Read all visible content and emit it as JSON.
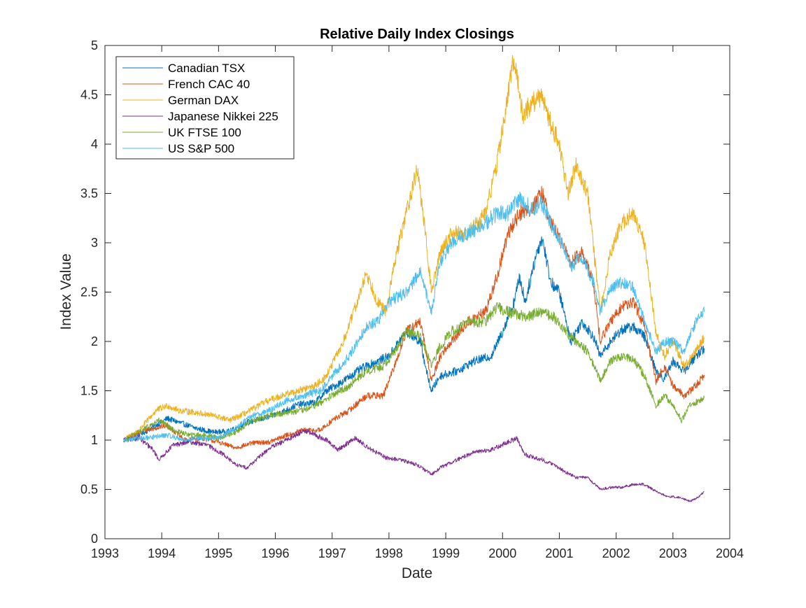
{
  "chart_data": {
    "type": "line",
    "title": "Relative Daily Index Closings",
    "xlabel": "Date",
    "ylabel": "Index Value",
    "xlim": [
      1993,
      2004
    ],
    "ylim": [
      0,
      5
    ],
    "x_ticks": [
      "1993",
      "1994",
      "1995",
      "1996",
      "1997",
      "1998",
      "1999",
      "2000",
      "2001",
      "2002",
      "2003",
      "2004"
    ],
    "y_ticks": [
      "0",
      "0.5",
      "1",
      "1.5",
      "2",
      "2.5",
      "3",
      "3.5",
      "4",
      "4.5",
      "5"
    ],
    "grid": false,
    "legend_position": "top-left",
    "series": [
      {
        "name": "Canadian TSX",
        "color": "#0072BD",
        "points": [
          [
            1993.33,
            1.0
          ],
          [
            1993.7,
            1.08
          ],
          [
            1994.1,
            1.22
          ],
          [
            1994.3,
            1.18
          ],
          [
            1994.6,
            1.12
          ],
          [
            1994.9,
            1.08
          ],
          [
            1995.2,
            1.09
          ],
          [
            1995.5,
            1.18
          ],
          [
            1995.8,
            1.22
          ],
          [
            1996.1,
            1.28
          ],
          [
            1996.4,
            1.36
          ],
          [
            1996.7,
            1.38
          ],
          [
            1996.9,
            1.5
          ],
          [
            1997.2,
            1.6
          ],
          [
            1997.5,
            1.72
          ],
          [
            1997.8,
            1.8
          ],
          [
            1998.0,
            1.85
          ],
          [
            1998.3,
            2.1
          ],
          [
            1998.55,
            2.0
          ],
          [
            1998.7,
            1.6
          ],
          [
            1998.75,
            1.5
          ],
          [
            1998.9,
            1.65
          ],
          [
            1999.2,
            1.7
          ],
          [
            1999.5,
            1.8
          ],
          [
            1999.8,
            1.85
          ],
          [
            2000.0,
            2.1
          ],
          [
            2000.2,
            2.4
          ],
          [
            2000.3,
            2.65
          ],
          [
            2000.4,
            2.4
          ],
          [
            2000.6,
            2.9
          ],
          [
            2000.7,
            3.05
          ],
          [
            2000.85,
            2.6
          ],
          [
            2001.0,
            2.5
          ],
          [
            2001.2,
            2.0
          ],
          [
            2001.4,
            2.2
          ],
          [
            2001.6,
            2.05
          ],
          [
            2001.72,
            1.85
          ],
          [
            2001.9,
            2.0
          ],
          [
            2002.1,
            2.12
          ],
          [
            2002.3,
            2.15
          ],
          [
            2002.5,
            2.05
          ],
          [
            2002.7,
            1.7
          ],
          [
            2002.85,
            1.62
          ],
          [
            2003.0,
            1.8
          ],
          [
            2003.2,
            1.7
          ],
          [
            2003.4,
            1.85
          ],
          [
            2003.55,
            1.93
          ]
        ]
      },
      {
        "name": "French CAC 40",
        "color": "#D95319",
        "points": [
          [
            1993.33,
            1.0
          ],
          [
            1993.7,
            1.1
          ],
          [
            1994.1,
            1.15
          ],
          [
            1994.4,
            1.0
          ],
          [
            1994.7,
            1.02
          ],
          [
            1995.0,
            0.98
          ],
          [
            1995.3,
            0.92
          ],
          [
            1995.6,
            0.97
          ],
          [
            1995.9,
            0.98
          ],
          [
            1996.2,
            1.05
          ],
          [
            1996.5,
            1.1
          ],
          [
            1996.8,
            1.1
          ],
          [
            1997.0,
            1.2
          ],
          [
            1997.3,
            1.3
          ],
          [
            1997.6,
            1.45
          ],
          [
            1997.9,
            1.45
          ],
          [
            1998.1,
            1.75
          ],
          [
            1998.3,
            2.1
          ],
          [
            1998.55,
            2.2
          ],
          [
            1998.75,
            1.6
          ],
          [
            1998.9,
            1.85
          ],
          [
            1999.1,
            2.0
          ],
          [
            1999.4,
            2.2
          ],
          [
            1999.7,
            2.3
          ],
          [
            1999.9,
            2.65
          ],
          [
            2000.1,
            3.1
          ],
          [
            2000.3,
            3.3
          ],
          [
            2000.5,
            3.35
          ],
          [
            2000.7,
            3.5
          ],
          [
            2000.85,
            3.2
          ],
          [
            2001.0,
            3.05
          ],
          [
            2001.2,
            2.8
          ],
          [
            2001.4,
            2.9
          ],
          [
            2001.6,
            2.6
          ],
          [
            2001.72,
            2.0
          ],
          [
            2001.9,
            2.2
          ],
          [
            2002.1,
            2.35
          ],
          [
            2002.3,
            2.4
          ],
          [
            2002.5,
            2.15
          ],
          [
            2002.7,
            1.6
          ],
          [
            2002.85,
            1.75
          ],
          [
            2003.0,
            1.55
          ],
          [
            2003.2,
            1.45
          ],
          [
            2003.4,
            1.55
          ],
          [
            2003.55,
            1.66
          ]
        ]
      },
      {
        "name": "German DAX",
        "color": "#EDB120",
        "points": [
          [
            1993.33,
            1.0
          ],
          [
            1993.6,
            1.1
          ],
          [
            1993.9,
            1.3
          ],
          [
            1994.1,
            1.35
          ],
          [
            1994.3,
            1.3
          ],
          [
            1994.6,
            1.28
          ],
          [
            1994.9,
            1.25
          ],
          [
            1995.2,
            1.2
          ],
          [
            1995.5,
            1.28
          ],
          [
            1995.8,
            1.38
          ],
          [
            1996.1,
            1.45
          ],
          [
            1996.4,
            1.5
          ],
          [
            1996.7,
            1.55
          ],
          [
            1996.9,
            1.65
          ],
          [
            1997.2,
            2.0
          ],
          [
            1997.5,
            2.5
          ],
          [
            1997.6,
            2.7
          ],
          [
            1997.8,
            2.4
          ],
          [
            1997.95,
            2.3
          ],
          [
            1998.1,
            2.8
          ],
          [
            1998.3,
            3.3
          ],
          [
            1998.5,
            3.75
          ],
          [
            1998.6,
            3.3
          ],
          [
            1998.75,
            2.5
          ],
          [
            1998.9,
            2.9
          ],
          [
            1999.1,
            3.1
          ],
          [
            1999.4,
            3.1
          ],
          [
            1999.7,
            3.3
          ],
          [
            1999.9,
            3.8
          ],
          [
            2000.1,
            4.5
          ],
          [
            2000.2,
            4.9
          ],
          [
            2000.35,
            4.3
          ],
          [
            2000.5,
            4.4
          ],
          [
            2000.7,
            4.5
          ],
          [
            2000.85,
            4.2
          ],
          [
            2001.0,
            4.0
          ],
          [
            2001.15,
            3.5
          ],
          [
            2001.3,
            3.8
          ],
          [
            2001.5,
            3.5
          ],
          [
            2001.72,
            2.3
          ],
          [
            2001.9,
            2.9
          ],
          [
            2002.1,
            3.2
          ],
          [
            2002.3,
            3.3
          ],
          [
            2002.5,
            3.0
          ],
          [
            2002.7,
            2.1
          ],
          [
            2002.85,
            1.85
          ],
          [
            2003.0,
            2.0
          ],
          [
            2003.2,
            1.75
          ],
          [
            2003.4,
            1.9
          ],
          [
            2003.55,
            2.04
          ]
        ]
      },
      {
        "name": "Japanese Nikkei 225",
        "color": "#7E2F8E",
        "points": [
          [
            1993.33,
            1.0
          ],
          [
            1993.6,
            1.02
          ],
          [
            1993.85,
            0.9
          ],
          [
            1993.95,
            0.8
          ],
          [
            1994.2,
            0.95
          ],
          [
            1994.5,
            0.98
          ],
          [
            1994.8,
            0.95
          ],
          [
            1995.1,
            0.85
          ],
          [
            1995.3,
            0.75
          ],
          [
            1995.5,
            0.72
          ],
          [
            1995.7,
            0.82
          ],
          [
            1995.9,
            0.92
          ],
          [
            1996.2,
            1.0
          ],
          [
            1996.5,
            1.1
          ],
          [
            1996.7,
            1.05
          ],
          [
            1996.9,
            1.0
          ],
          [
            1997.1,
            0.9
          ],
          [
            1997.4,
            1.02
          ],
          [
            1997.7,
            0.9
          ],
          [
            1997.95,
            0.82
          ],
          [
            1998.2,
            0.8
          ],
          [
            1998.5,
            0.75
          ],
          [
            1998.75,
            0.65
          ],
          [
            1998.9,
            0.72
          ],
          [
            1999.2,
            0.8
          ],
          [
            1999.5,
            0.88
          ],
          [
            1999.8,
            0.9
          ],
          [
            2000.1,
            0.98
          ],
          [
            2000.25,
            1.02
          ],
          [
            2000.4,
            0.85
          ],
          [
            2000.7,
            0.8
          ],
          [
            2000.9,
            0.75
          ],
          [
            2001.1,
            0.68
          ],
          [
            2001.3,
            0.62
          ],
          [
            2001.5,
            0.62
          ],
          [
            2001.72,
            0.5
          ],
          [
            2001.9,
            0.52
          ],
          [
            2002.1,
            0.52
          ],
          [
            2002.3,
            0.55
          ],
          [
            2002.5,
            0.55
          ],
          [
            2002.7,
            0.48
          ],
          [
            2002.9,
            0.43
          ],
          [
            2003.1,
            0.42
          ],
          [
            2003.3,
            0.38
          ],
          [
            2003.45,
            0.42
          ],
          [
            2003.55,
            0.48
          ]
        ]
      },
      {
        "name": "UK FTSE 100",
        "color": "#77AC30",
        "points": [
          [
            1993.33,
            1.0
          ],
          [
            1993.6,
            1.08
          ],
          [
            1993.95,
            1.2
          ],
          [
            1994.2,
            1.1
          ],
          [
            1994.5,
            1.05
          ],
          [
            1994.8,
            1.05
          ],
          [
            1995.0,
            1.02
          ],
          [
            1995.3,
            1.08
          ],
          [
            1995.6,
            1.2
          ],
          [
            1995.9,
            1.25
          ],
          [
            1996.2,
            1.28
          ],
          [
            1996.5,
            1.3
          ],
          [
            1996.8,
            1.38
          ],
          [
            1997.0,
            1.45
          ],
          [
            1997.3,
            1.55
          ],
          [
            1997.6,
            1.7
          ],
          [
            1997.9,
            1.75
          ],
          [
            1998.1,
            1.9
          ],
          [
            1998.3,
            2.1
          ],
          [
            1998.55,
            2.05
          ],
          [
            1998.75,
            1.75
          ],
          [
            1998.9,
            1.95
          ],
          [
            1999.1,
            2.1
          ],
          [
            1999.4,
            2.2
          ],
          [
            1999.7,
            2.2
          ],
          [
            1999.9,
            2.35
          ],
          [
            2000.1,
            2.3
          ],
          [
            2000.4,
            2.25
          ],
          [
            2000.7,
            2.3
          ],
          [
            2000.9,
            2.25
          ],
          [
            2001.1,
            2.1
          ],
          [
            2001.3,
            2.0
          ],
          [
            2001.5,
            1.9
          ],
          [
            2001.72,
            1.6
          ],
          [
            2001.9,
            1.8
          ],
          [
            2002.1,
            1.85
          ],
          [
            2002.3,
            1.82
          ],
          [
            2002.5,
            1.65
          ],
          [
            2002.7,
            1.35
          ],
          [
            2002.85,
            1.45
          ],
          [
            2003.0,
            1.35
          ],
          [
            2003.15,
            1.2
          ],
          [
            2003.3,
            1.35
          ],
          [
            2003.55,
            1.43
          ]
        ]
      },
      {
        "name": "US S&P 500",
        "color": "#4DBEEE",
        "points": [
          [
            1993.33,
            1.0
          ],
          [
            1993.7,
            1.02
          ],
          [
            1994.1,
            1.05
          ],
          [
            1994.4,
            1.0
          ],
          [
            1994.7,
            1.02
          ],
          [
            1995.0,
            1.02
          ],
          [
            1995.3,
            1.12
          ],
          [
            1995.6,
            1.25
          ],
          [
            1995.9,
            1.3
          ],
          [
            1996.2,
            1.4
          ],
          [
            1996.5,
            1.45
          ],
          [
            1996.8,
            1.5
          ],
          [
            1997.0,
            1.65
          ],
          [
            1997.3,
            1.85
          ],
          [
            1997.6,
            2.15
          ],
          [
            1997.8,
            2.2
          ],
          [
            1998.0,
            2.4
          ],
          [
            1998.3,
            2.5
          ],
          [
            1998.55,
            2.7
          ],
          [
            1998.75,
            2.3
          ],
          [
            1998.9,
            2.8
          ],
          [
            1999.1,
            3.0
          ],
          [
            1999.4,
            3.1
          ],
          [
            1999.7,
            3.2
          ],
          [
            1999.9,
            3.3
          ],
          [
            2000.1,
            3.3
          ],
          [
            2000.3,
            3.45
          ],
          [
            2000.5,
            3.35
          ],
          [
            2000.7,
            3.4
          ],
          [
            2000.85,
            3.2
          ],
          [
            2001.0,
            3.05
          ],
          [
            2001.2,
            2.75
          ],
          [
            2001.4,
            2.85
          ],
          [
            2001.6,
            2.6
          ],
          [
            2001.72,
            2.3
          ],
          [
            2001.9,
            2.55
          ],
          [
            2002.1,
            2.6
          ],
          [
            2002.3,
            2.55
          ],
          [
            2002.5,
            2.2
          ],
          [
            2002.7,
            1.9
          ],
          [
            2002.85,
            2.0
          ],
          [
            2003.0,
            2.0
          ],
          [
            2003.2,
            1.9
          ],
          [
            2003.4,
            2.2
          ],
          [
            2003.55,
            2.3
          ]
        ]
      }
    ]
  }
}
